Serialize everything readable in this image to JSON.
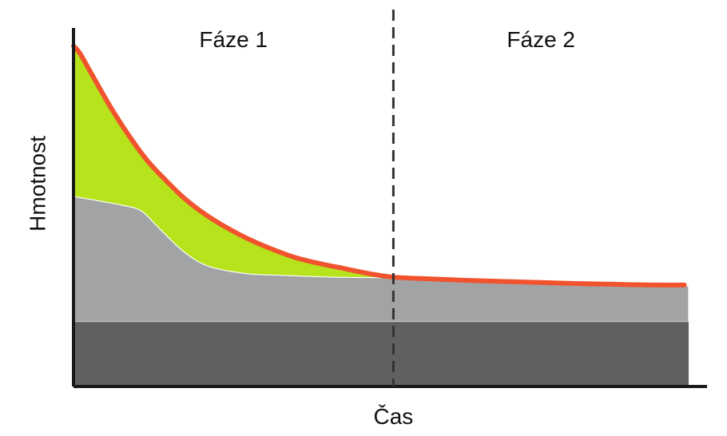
{
  "chart_data": {
    "type": "area",
    "title": "",
    "xlabel": "Čas",
    "ylabel": "Hmotnost",
    "phases": [
      {
        "label": "Fáze 1"
      },
      {
        "label": "Fáze 2"
      }
    ],
    "xlim": [
      0,
      100
    ],
    "ylim": [
      0,
      100
    ],
    "phase_boundary_x": 52,
    "colors": {
      "base": "#5e6061",
      "middle": "#a2a3a5",
      "top": "#b6e31b",
      "curve": "#f0532d",
      "axis": "#1a1a1a"
    },
    "series": [
      {
        "layer": "base",
        "x": [
          0,
          100
        ],
        "y": [
          18,
          18
        ]
      },
      {
        "layer": "middle",
        "x": [
          0,
          5,
          8,
          11,
          14,
          18,
          22,
          28,
          34,
          42,
          52,
          62,
          74,
          86,
          100
        ],
        "y": [
          53,
          51.5,
          50.5,
          49,
          44,
          37.5,
          33.5,
          31.5,
          31,
          30.5,
          30.3,
          29.8,
          29.2,
          28.6,
          28
        ]
      },
      {
        "layer": "top",
        "x": [
          0,
          1,
          3,
          6,
          9,
          12,
          15,
          18,
          21,
          24,
          28,
          32,
          36,
          40,
          44,
          48,
          52,
          58,
          64,
          70,
          76,
          82,
          88,
          94,
          99.3
        ],
        "y": [
          95,
          93,
          87,
          78,
          70,
          63,
          57.5,
          52.5,
          48.5,
          45.2,
          41.5,
          38.5,
          36,
          34.3,
          32.9,
          31.5,
          30.5,
          30,
          29.6,
          29.3,
          29,
          28.7,
          28.5,
          28.3,
          28.3
        ]
      }
    ]
  }
}
